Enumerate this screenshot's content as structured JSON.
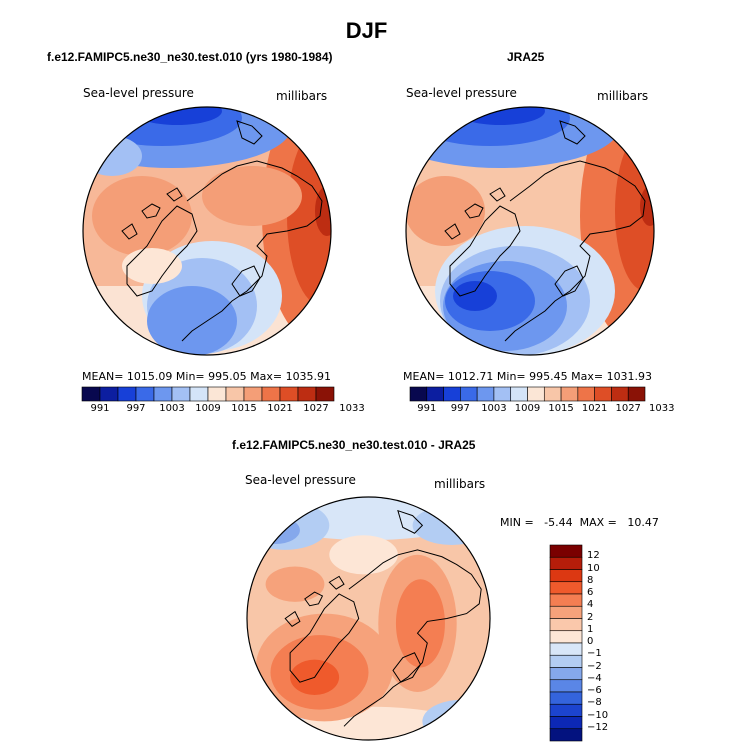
{
  "page": {
    "title": "DJF"
  },
  "panels": [
    {
      "title": "f.e12.FAMIPC5.ne30_ne30.test.010 (yrs 1980-1984)",
      "left_label": "Sea-level pressure",
      "right_label": "millibars",
      "stats": "MEAN= 1015.09   Min= 995.05   Max= 1035.91"
    },
    {
      "title": "JRA25",
      "left_label": "Sea-level pressure",
      "right_label": "millibars",
      "stats": "MEAN= 1012.71   Min= 995.45   Max= 1031.93"
    },
    {
      "title": "f.e12.FAMIPC5.ne30_ne30.test.010 - JRA25",
      "left_label": "Sea-level pressure",
      "right_label": "millibars",
      "stats": "MIN =   -5.44  MAX =   10.47"
    }
  ],
  "abs_colorbar": {
    "colors": [
      "#08084f",
      "#0c1ea0",
      "#1740d8",
      "#3a6ae8",
      "#6d97ef",
      "#a3c0f4",
      "#d4e4f8",
      "#fbe6d6",
      "#f8c6a8",
      "#f49e77",
      "#ee7448",
      "#de4e26",
      "#bd2d12",
      "#8a1206"
    ],
    "ticks": [
      "991",
      "997",
      "1003",
      "1009",
      "1015",
      "1021",
      "1027",
      "1033"
    ]
  },
  "diff_colorbar": {
    "colors": [
      "#7a0000",
      "#b51d0a",
      "#dc3812",
      "#ef5a2c",
      "#f47e52",
      "#f6a27b",
      "#fac8ab",
      "#fde6d6",
      "#d8e6f8",
      "#b3cdf3",
      "#85a8ec",
      "#5a86e6",
      "#3464dc",
      "#1c44cf",
      "#0c28b5",
      "#03127f"
    ],
    "ticks": [
      "12",
      "10",
      "8",
      "6",
      "4",
      "2",
      "1",
      "0",
      "−1",
      "−2",
      "−4",
      "−6",
      "−8",
      "−10",
      "−12"
    ]
  }
}
